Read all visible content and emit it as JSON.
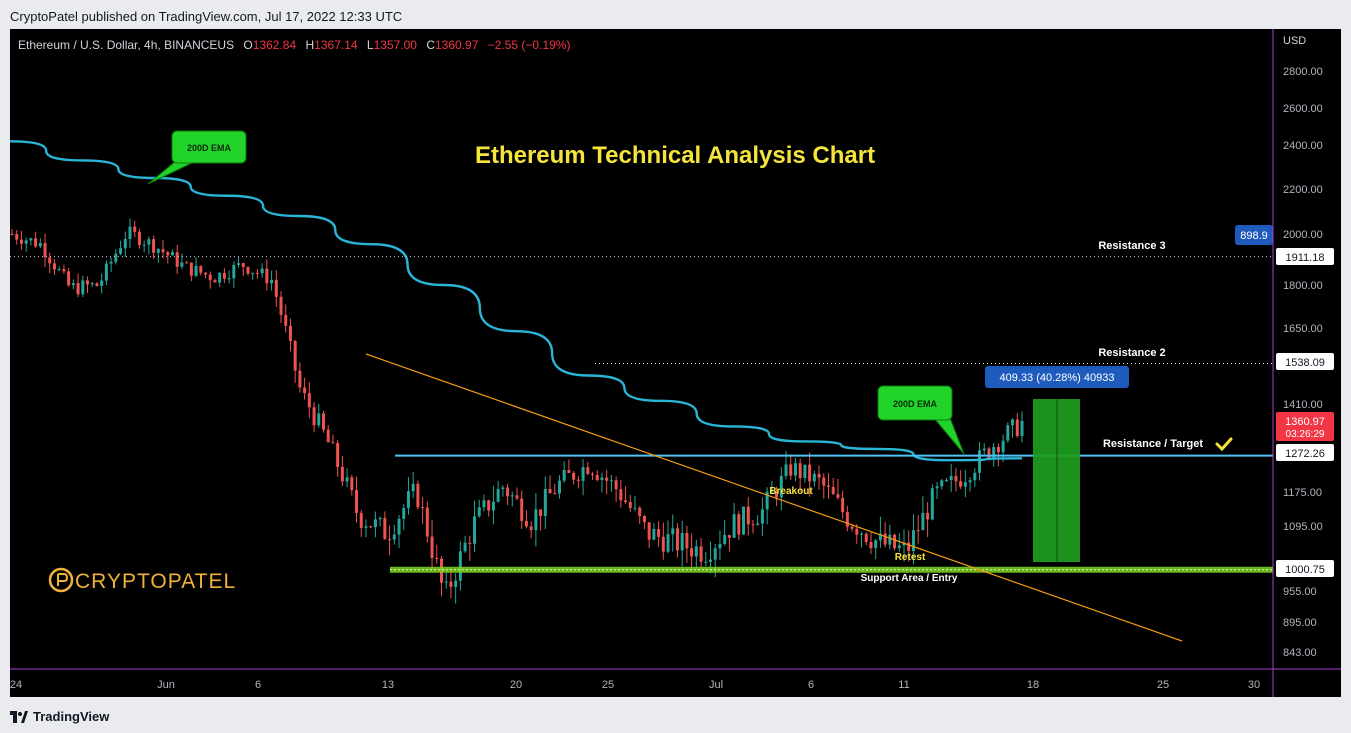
{
  "header": {
    "published_text": "CryptoPatel published on TradingView.com, Jul 17, 2022 12:33 UTC"
  },
  "symbol": {
    "name": "Ethereum / U.S. Dollar, 4h, BINANCEUS",
    "o_label": "O",
    "o": "1362.84",
    "h_label": "H",
    "h": "1367.14",
    "l_label": "L",
    "l": "1357.00",
    "c_label": "C",
    "c": "1360.97",
    "change": "−2.55 (−0.19%)"
  },
  "footer": {
    "brand": "TradingView"
  },
  "colors": {
    "background": "#000000",
    "ema": "#29b6d6",
    "up": "#26a69a",
    "down": "#ef5350",
    "title": "#f5e53b",
    "green_label": "#22d32a",
    "level_line": "#4fc3f7",
    "trend_line": "#f39c12"
  },
  "chart_data": {
    "type": "candlestick",
    "title": "Ethereum Technical Analysis Chart",
    "currency": "USD",
    "y_ticks": [
      "2800.00",
      "2600.00",
      "2400.00",
      "2200.00",
      "2000.00",
      "1800.00",
      "1650.00",
      "1410.00",
      "1175.00",
      "1095.00",
      "955.00",
      "895.00",
      "843.00"
    ],
    "x_ticks": [
      "24",
      "Jun",
      "6",
      "13",
      "20",
      "25",
      "Jul",
      "6",
      "11",
      "18",
      "25",
      "30"
    ],
    "price_tags": [
      {
        "label": "1911.18",
        "type": "level"
      },
      {
        "label": "1538.09",
        "type": "level"
      },
      {
        "label": "1272.26",
        "type": "level"
      },
      {
        "label": "1000.75",
        "type": "level"
      },
      {
        "label": "1360.97",
        "sub": "03:26:29",
        "type": "last"
      },
      {
        "label": "898.9",
        "type": "measure"
      }
    ],
    "ema_label": "200D EMA",
    "ema_label_2": "200D EMA",
    "ema_series_approx": [
      2420,
      2330,
      2250,
      2170,
      2080,
      1960,
      1800,
      1640,
      1500,
      1420,
      1350,
      1310,
      1290,
      1260,
      1265
    ],
    "levels": [
      {
        "name": "Resistance 3",
        "price": 1911.18
      },
      {
        "name": "Resistance 2",
        "price": 1538.09
      },
      {
        "name": "Resistance / Target",
        "price": 1272.26
      },
      {
        "name": "Support Area / Entry",
        "price": 1000.75
      }
    ],
    "annotations": [
      "Breakout",
      "Retest"
    ],
    "measure": "409.33 (40.28%) 40933",
    "close_series_approx": [
      2000,
      1960,
      1790,
      1800,
      2010,
      1950,
      1870,
      1830,
      1880,
      1820,
      1450,
      1300,
      1120,
      1080,
      1180,
      940,
      1100,
      1190,
      1110,
      1200,
      1250,
      1180,
      1080,
      1060,
      1040,
      1100,
      1130,
      1240,
      1200,
      1110,
      1060,
      1040,
      1170,
      1220,
      1300,
      1360
    ],
    "brand_watermark": "CRYPTOPATEL"
  }
}
